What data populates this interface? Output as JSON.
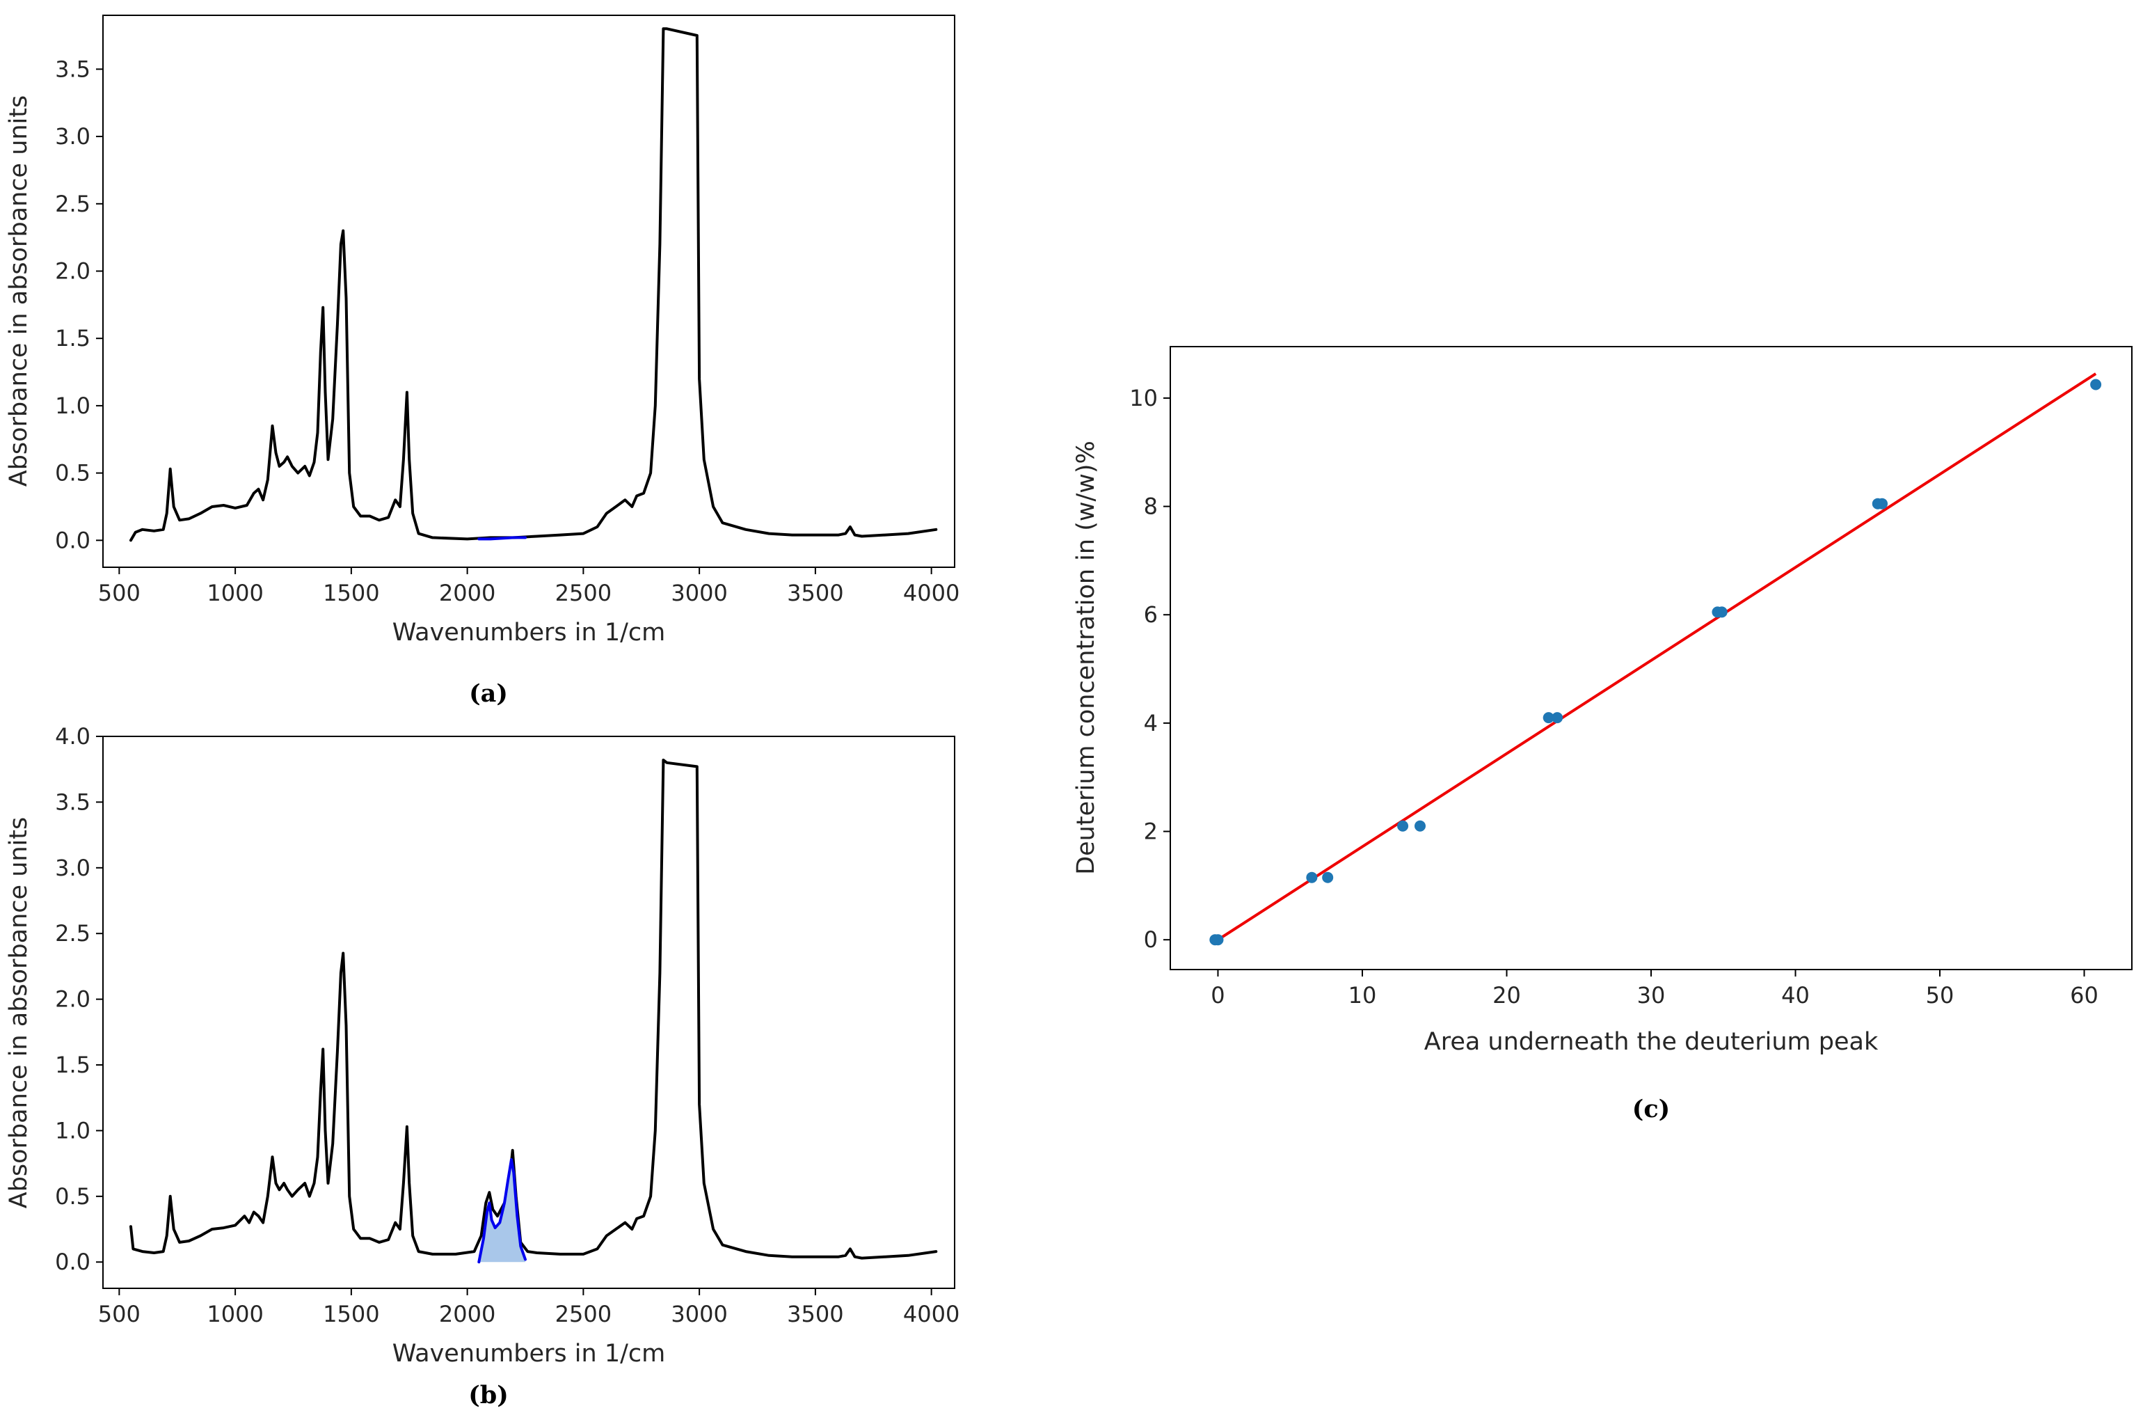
{
  "chart_data": [
    {
      "id": "a",
      "type": "line",
      "caption": "(a)",
      "xlabel": "Wavenumbers in 1/cm",
      "ylabel": "Absorbance in absorbance units",
      "xlim": [
        430,
        4100
      ],
      "ylim": [
        -0.2,
        3.9
      ],
      "xticks": [
        500,
        1000,
        1500,
        2000,
        2500,
        3000,
        3500,
        4000
      ],
      "yticks": [
        0.0,
        0.5,
        1.0,
        1.5,
        2.0,
        2.5,
        3.0,
        3.5
      ],
      "series": [
        {
          "name": "spectrum",
          "color": "#000000",
          "x": [
            550,
            570,
            600,
            650,
            690,
            705,
            720,
            735,
            760,
            800,
            850,
            900,
            950,
            1000,
            1050,
            1080,
            1100,
            1120,
            1140,
            1160,
            1175,
            1190,
            1210,
            1225,
            1245,
            1270,
            1300,
            1320,
            1340,
            1355,
            1368,
            1378,
            1388,
            1400,
            1420,
            1440,
            1455,
            1465,
            1478,
            1492,
            1510,
            1540,
            1580,
            1620,
            1660,
            1690,
            1710,
            1725,
            1740,
            1750,
            1765,
            1790,
            1850,
            2000,
            2100,
            2200,
            2300,
            2400,
            2500,
            2560,
            2600,
            2640,
            2680,
            2710,
            2730,
            2760,
            2790,
            2810,
            2830,
            2845,
            2860,
            2990,
            3000,
            3020,
            3060,
            3100,
            3200,
            3300,
            3400,
            3500,
            3600,
            3630,
            3650,
            3670,
            3700,
            3800,
            3900,
            4020
          ],
          "y": [
            0.0,
            0.06,
            0.08,
            0.07,
            0.08,
            0.2,
            0.53,
            0.25,
            0.15,
            0.16,
            0.2,
            0.25,
            0.26,
            0.24,
            0.26,
            0.35,
            0.38,
            0.3,
            0.45,
            0.85,
            0.65,
            0.55,
            0.58,
            0.62,
            0.55,
            0.5,
            0.55,
            0.48,
            0.58,
            0.8,
            1.4,
            1.73,
            1.1,
            0.6,
            0.9,
            1.6,
            2.2,
            2.3,
            1.8,
            0.5,
            0.25,
            0.18,
            0.18,
            0.15,
            0.17,
            0.3,
            0.25,
            0.6,
            1.1,
            0.6,
            0.2,
            0.05,
            0.02,
            0.01,
            0.02,
            0.02,
            0.03,
            0.04,
            0.05,
            0.1,
            0.2,
            0.25,
            0.3,
            0.25,
            0.33,
            0.35,
            0.5,
            1.0,
            2.2,
            3.8,
            3.8,
            3.75,
            1.2,
            0.6,
            0.25,
            0.13,
            0.08,
            0.05,
            0.04,
            0.04,
            0.04,
            0.05,
            0.1,
            0.04,
            0.03,
            0.04,
            0.05,
            0.08
          ]
        },
        {
          "name": "deuterium region",
          "color": "#0000ee",
          "x": [
            2050,
            2100,
            2150,
            2200,
            2250
          ],
          "y": [
            0.01,
            0.01,
            0.015,
            0.02,
            0.02
          ]
        }
      ]
    },
    {
      "id": "b",
      "type": "line",
      "caption": "(b)",
      "xlabel": "Wavenumbers in 1/cm",
      "ylabel": "Absorbance in absorbance units",
      "xlim": [
        430,
        4100
      ],
      "ylim": [
        -0.2,
        4.0
      ],
      "xticks": [
        500,
        1000,
        1500,
        2000,
        2500,
        3000,
        3500,
        4000
      ],
      "yticks": [
        0.0,
        0.5,
        1.0,
        1.5,
        2.0,
        2.5,
        3.0,
        3.5,
        4.0
      ],
      "series": [
        {
          "name": "spectrum",
          "color": "#000000",
          "x": [
            550,
            560,
            600,
            650,
            690,
            705,
            720,
            735,
            760,
            800,
            850,
            900,
            950,
            1000,
            1040,
            1060,
            1080,
            1100,
            1120,
            1140,
            1160,
            1175,
            1190,
            1210,
            1225,
            1245,
            1270,
            1300,
            1320,
            1340,
            1355,
            1368,
            1378,
            1388,
            1400,
            1420,
            1440,
            1455,
            1465,
            1478,
            1492,
            1510,
            1540,
            1580,
            1620,
            1660,
            1690,
            1710,
            1725,
            1740,
            1750,
            1765,
            1790,
            1850,
            1950,
            2030,
            2060,
            2080,
            2095,
            2110,
            2130,
            2160,
            2180,
            2195,
            2210,
            2230,
            2260,
            2300,
            2400,
            2500,
            2560,
            2600,
            2640,
            2680,
            2710,
            2730,
            2760,
            2790,
            2810,
            2830,
            2845,
            2860,
            2990,
            3000,
            3020,
            3060,
            3100,
            3200,
            3300,
            3400,
            3500,
            3600,
            3630,
            3650,
            3670,
            3700,
            3800,
            3900,
            4020
          ],
          "y": [
            0.27,
            0.1,
            0.08,
            0.07,
            0.08,
            0.2,
            0.5,
            0.25,
            0.15,
            0.16,
            0.2,
            0.25,
            0.26,
            0.28,
            0.35,
            0.3,
            0.38,
            0.35,
            0.3,
            0.5,
            0.8,
            0.6,
            0.55,
            0.6,
            0.55,
            0.5,
            0.55,
            0.6,
            0.5,
            0.6,
            0.8,
            1.3,
            1.62,
            1.0,
            0.6,
            0.9,
            1.6,
            2.2,
            2.35,
            1.8,
            0.5,
            0.25,
            0.18,
            0.18,
            0.15,
            0.17,
            0.3,
            0.25,
            0.6,
            1.03,
            0.6,
            0.2,
            0.08,
            0.06,
            0.06,
            0.08,
            0.2,
            0.45,
            0.53,
            0.4,
            0.35,
            0.45,
            0.6,
            0.85,
            0.5,
            0.15,
            0.08,
            0.07,
            0.06,
            0.06,
            0.1,
            0.2,
            0.25,
            0.3,
            0.25,
            0.33,
            0.35,
            0.5,
            1.0,
            2.2,
            3.82,
            3.8,
            3.77,
            1.2,
            0.6,
            0.25,
            0.13,
            0.08,
            0.05,
            0.04,
            0.04,
            0.04,
            0.05,
            0.1,
            0.04,
            0.03,
            0.04,
            0.05,
            0.08
          ]
        },
        {
          "name": "deuterium peak",
          "color": "#0000ee",
          "fill": "#a9c7ea",
          "x": [
            2050,
            2070,
            2085,
            2095,
            2105,
            2120,
            2140,
            2160,
            2175,
            2190,
            2200,
            2215,
            2230,
            2250
          ],
          "y": [
            0.0,
            0.18,
            0.38,
            0.45,
            0.32,
            0.26,
            0.3,
            0.45,
            0.62,
            0.78,
            0.68,
            0.35,
            0.12,
            0.02
          ]
        }
      ]
    },
    {
      "id": "c",
      "type": "scatter",
      "caption": "(c)",
      "xlabel": "Area underneath the deuterium peak",
      "ylabel": "Deuterium concentration in (w/w)%",
      "xlim": [
        -3.3,
        63.3
      ],
      "ylim": [
        -0.55,
        10.95
      ],
      "xticks": [
        0,
        10,
        20,
        30,
        40,
        50,
        60
      ],
      "yticks": [
        0,
        2,
        4,
        6,
        8,
        10
      ],
      "points": {
        "color": "#1f77b4",
        "x": [
          -0.2,
          0.0,
          6.5,
          7.6,
          12.8,
          14.0,
          22.9,
          23.5,
          34.6,
          34.9,
          45.7,
          46.0,
          60.8
        ],
        "y": [
          0.0,
          0.0,
          1.15,
          1.15,
          2.1,
          2.1,
          4.1,
          4.1,
          6.05,
          6.05,
          8.05,
          8.05,
          10.25
        ]
      },
      "fit": {
        "color": "#ee0000",
        "x": [
          0.0,
          60.8
        ],
        "y": [
          0.0,
          10.45
        ]
      }
    }
  ]
}
